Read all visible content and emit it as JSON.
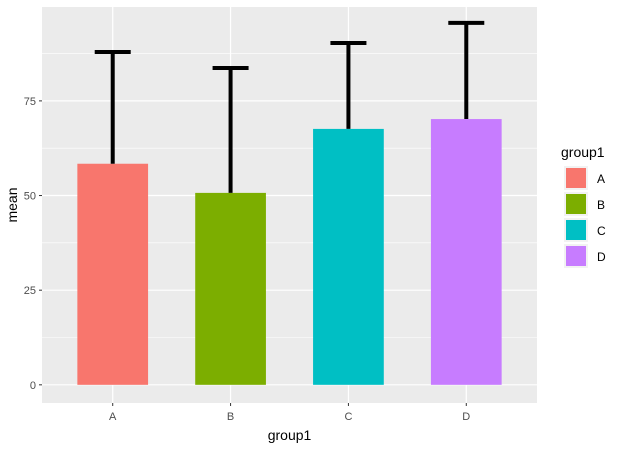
{
  "chart_data": {
    "type": "bar",
    "categories": [
      "A",
      "B",
      "C",
      "D"
    ],
    "values": [
      58.4,
      50.7,
      67.6,
      70.2
    ],
    "error_upper": [
      87.9,
      83.7,
      90.3,
      95.6
    ],
    "colors": [
      "#F8766D",
      "#7CAE00",
      "#00BFC4",
      "#C77CFF"
    ],
    "xlabel": "group1",
    "ylabel": "mean",
    "ylim": [
      -4.8,
      99.8
    ],
    "yticks": [
      0,
      25,
      50,
      75
    ],
    "grid": true,
    "legend": {
      "title": "group1",
      "position": "right",
      "items": [
        "A",
        "B",
        "C",
        "D"
      ]
    }
  }
}
